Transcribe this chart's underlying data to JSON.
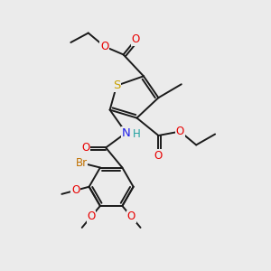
{
  "bg_color": "#ebebeb",
  "bond_color": "#1a1a1a",
  "bond_width": 1.4,
  "atom_colors": {
    "S": "#c8a000",
    "O": "#e80000",
    "N": "#2020e8",
    "Br": "#c07000",
    "C": "#1a1a1a",
    "H": "#20a0a0"
  },
  "font_size": 8.5
}
